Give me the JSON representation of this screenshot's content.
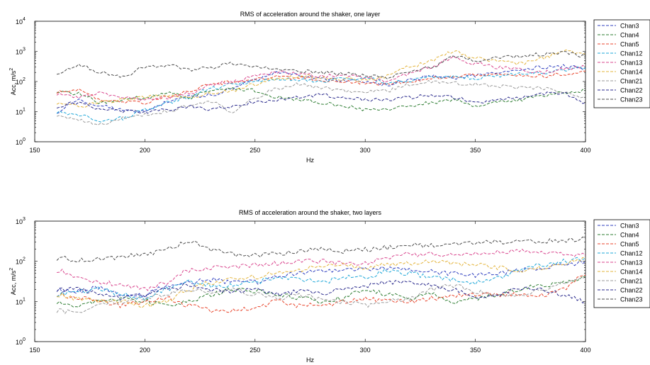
{
  "chart_data": [
    {
      "type": "line",
      "title": "RMS of acceleration around the shaker, one layer",
      "xlabel": "Hz",
      "ylabel": "Acc, m/s",
      "ylabel_sup": "2",
      "xlim": [
        150,
        400
      ],
      "ylim": [
        1,
        10000
      ],
      "yscale": "log",
      "x_ticks": [
        "150",
        "200",
        "250",
        "300",
        "350",
        "400"
      ],
      "y_ticks": [
        {
          "base": "10",
          "exp": "0"
        },
        {
          "base": "10",
          "exp": "1"
        },
        {
          "base": "10",
          "exp": "2"
        },
        {
          "base": "10",
          "exp": "3"
        },
        {
          "base": "10",
          "exp": "4"
        }
      ],
      "legend_position": "outside-right",
      "x": [
        160,
        170,
        180,
        190,
        200,
        210,
        220,
        230,
        240,
        250,
        260,
        270,
        280,
        290,
        300,
        310,
        320,
        330,
        340,
        350,
        360,
        370,
        380,
        390,
        400
      ],
      "series": [
        {
          "name": "Chan3",
          "color": "#2f3fbf",
          "values": [
            10,
            25,
            15,
            12,
            10,
            20,
            30,
            35,
            60,
            110,
            200,
            160,
            120,
            110,
            100,
            80,
            110,
            150,
            130,
            160,
            200,
            220,
            300,
            320,
            280
          ]
        },
        {
          "name": "Chan4",
          "color": "#2e7d32",
          "values": [
            50,
            40,
            20,
            25,
            30,
            40,
            30,
            50,
            60,
            50,
            30,
            25,
            20,
            15,
            12,
            12,
            15,
            20,
            25,
            15,
            20,
            25,
            35,
            45,
            50
          ]
        },
        {
          "name": "Chan5",
          "color": "#e8452c",
          "values": [
            45,
            50,
            25,
            20,
            20,
            30,
            50,
            80,
            100,
            120,
            140,
            130,
            110,
            100,
            90,
            80,
            100,
            130,
            150,
            160,
            170,
            160,
            150,
            180,
            220
          ]
        },
        {
          "name": "Chan12",
          "color": "#1ea7d8",
          "values": [
            10,
            8,
            5,
            6,
            12,
            20,
            30,
            60,
            80,
            100,
            120,
            110,
            100,
            120,
            130,
            90,
            110,
            140,
            150,
            130,
            150,
            180,
            200,
            250,
            280
          ]
        },
        {
          "name": "Chan13",
          "color": "#d9468e",
          "values": [
            40,
            30,
            40,
            30,
            25,
            30,
            40,
            80,
            100,
            150,
            200,
            180,
            150,
            160,
            140,
            100,
            180,
            300,
            600,
            400,
            300,
            250,
            200,
            250,
            300
          ]
        },
        {
          "name": "Chan14",
          "color": "#e3b43c",
          "values": [
            20,
            15,
            20,
            25,
            30,
            35,
            30,
            40,
            50,
            80,
            120,
            150,
            140,
            120,
            110,
            150,
            300,
            500,
            1000,
            600,
            500,
            400,
            600,
            1000,
            800
          ]
        },
        {
          "name": "Chan21",
          "color": "#9a9a9a",
          "values": [
            8,
            5,
            4,
            6,
            8,
            10,
            15,
            20,
            10,
            30,
            60,
            80,
            60,
            50,
            45,
            50,
            80,
            100,
            90,
            80,
            70,
            60,
            60,
            40,
            30
          ]
        },
        {
          "name": "Chan22",
          "color": "#2a2a8c",
          "values": [
            15,
            20,
            12,
            10,
            10,
            12,
            15,
            12,
            15,
            20,
            25,
            30,
            35,
            30,
            25,
            25,
            30,
            35,
            30,
            20,
            25,
            30,
            40,
            40,
            20
          ]
        },
        {
          "name": "Chan23",
          "color": "#4d4d4d",
          "values": [
            200,
            350,
            200,
            150,
            300,
            350,
            250,
            300,
            400,
            300,
            250,
            220,
            200,
            180,
            160,
            140,
            200,
            300,
            700,
            500,
            600,
            700,
            800,
            900,
            700
          ]
        }
      ]
    },
    {
      "type": "line",
      "title": "RMS of acceleration around the shaker, two layers",
      "xlabel": "Hz",
      "ylabel": "Acc, m/s",
      "ylabel_sup": "2",
      "xlim": [
        150,
        400
      ],
      "ylim": [
        1,
        1000
      ],
      "yscale": "log",
      "x_ticks": [
        "150",
        "200",
        "250",
        "300",
        "350",
        "400"
      ],
      "y_ticks": [
        {
          "base": "10",
          "exp": "0"
        },
        {
          "base": "10",
          "exp": "1"
        },
        {
          "base": "10",
          "exp": "2"
        },
        {
          "base": "10",
          "exp": "3"
        }
      ],
      "legend_position": "outside-right",
      "x": [
        160,
        170,
        180,
        190,
        200,
        210,
        220,
        230,
        240,
        250,
        260,
        270,
        280,
        290,
        300,
        310,
        320,
        330,
        340,
        350,
        360,
        370,
        380,
        390,
        400
      ],
      "series": [
        {
          "name": "Chan3",
          "color": "#2f3fbf",
          "values": [
            20,
            18,
            22,
            15,
            15,
            25,
            30,
            35,
            30,
            30,
            40,
            50,
            55,
            60,
            65,
            70,
            60,
            55,
            50,
            45,
            50,
            60,
            70,
            80,
            100
          ]
        },
        {
          "name": "Chan4",
          "color": "#2e7d32",
          "values": [
            10,
            8,
            10,
            12,
            10,
            8,
            10,
            15,
            20,
            18,
            15,
            12,
            10,
            12,
            20,
            15,
            12,
            15,
            10,
            12,
            15,
            20,
            25,
            30,
            40
          ]
        },
        {
          "name": "Chan5",
          "color": "#e8452c",
          "values": [
            15,
            12,
            10,
            8,
            10,
            12,
            8,
            6,
            6,
            7,
            10,
            8,
            8,
            10,
            12,
            10,
            10,
            12,
            14,
            14,
            15,
            15,
            14,
            20,
            45
          ]
        },
        {
          "name": "Chan12",
          "color": "#1ea7d8",
          "values": [
            15,
            18,
            20,
            15,
            12,
            20,
            30,
            25,
            25,
            30,
            40,
            35,
            30,
            40,
            40,
            60,
            50,
            40,
            35,
            30,
            40,
            60,
            80,
            100,
            120
          ]
        },
        {
          "name": "Chan13",
          "color": "#d9468e",
          "values": [
            60,
            40,
            30,
            25,
            20,
            30,
            60,
            70,
            70,
            80,
            90,
            100,
            100,
            90,
            90,
            120,
            150,
            150,
            150,
            160,
            170,
            180,
            170,
            160,
            140
          ]
        },
        {
          "name": "Chan14",
          "color": "#e3b43c",
          "values": [
            15,
            12,
            10,
            10,
            8,
            10,
            20,
            30,
            40,
            40,
            50,
            60,
            80,
            80,
            70,
            80,
            90,
            100,
            90,
            80,
            70,
            60,
            70,
            90,
            120
          ]
        },
        {
          "name": "Chan21",
          "color": "#9a9a9a",
          "values": [
            6,
            5,
            8,
            10,
            12,
            15,
            20,
            18,
            20,
            15,
            12,
            15,
            12,
            10,
            8,
            10,
            12,
            20,
            25,
            18,
            15,
            15,
            20,
            30,
            40
          ]
        },
        {
          "name": "Chan22",
          "color": "#2a2a8c",
          "values": [
            20,
            20,
            15,
            12,
            15,
            20,
            25,
            20,
            18,
            20,
            15,
            18,
            15,
            20,
            25,
            30,
            30,
            25,
            20,
            12,
            15,
            20,
            20,
            15,
            10
          ]
        },
        {
          "name": "Chan23",
          "color": "#4d4d4d",
          "values": [
            120,
            110,
            110,
            130,
            150,
            200,
            300,
            200,
            150,
            140,
            150,
            180,
            200,
            180,
            200,
            220,
            250,
            250,
            260,
            280,
            300,
            310,
            320,
            330,
            370
          ]
        }
      ]
    }
  ]
}
